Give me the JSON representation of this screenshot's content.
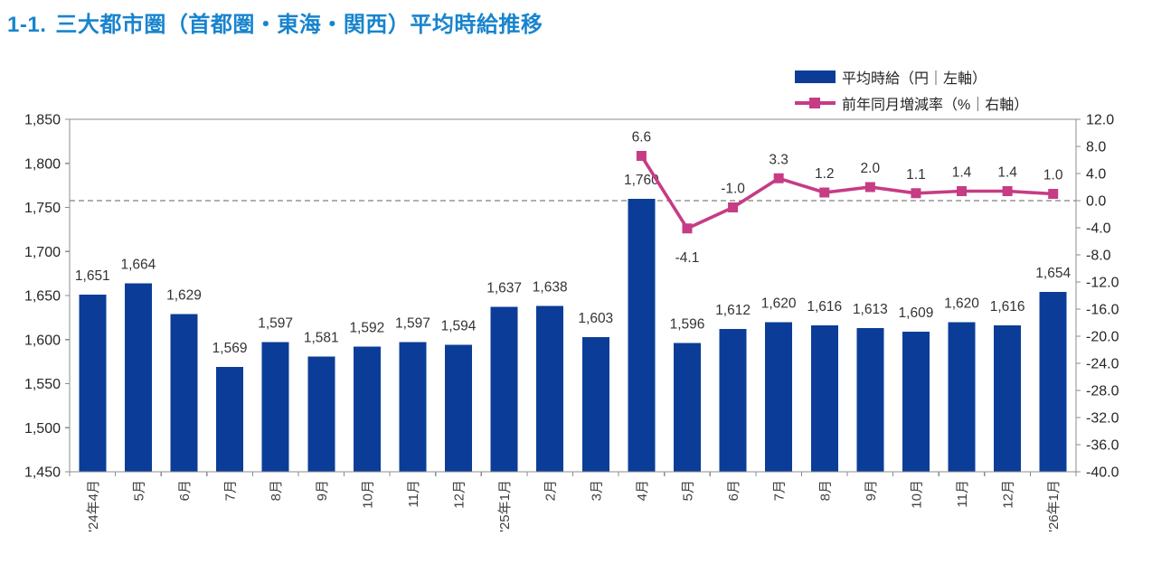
{
  "title": {
    "number": "1-1.",
    "text": "三大都市圏（首都圏・東海・関西）平均時給推移",
    "color": "#1884CE"
  },
  "legend": {
    "bar": {
      "label": "平均時給（円｜左軸）",
      "color": "#0B3D98"
    },
    "line": {
      "label": "前年同月増減率（%｜右軸）",
      "color": "#C63C85"
    }
  },
  "chart_data": {
    "type": "combo bar+line",
    "categories": [
      "'24年4月",
      "5月",
      "6月",
      "7月",
      "8月",
      "9月",
      "10月",
      "11月",
      "12月",
      "'25年1月",
      "2月",
      "3月",
      "4月",
      "5月",
      "6月",
      "7月",
      "8月",
      "9月",
      "10月",
      "11月",
      "12月",
      "'26年1月"
    ],
    "bars": {
      "name": "平均時給（円｜左軸）",
      "axis": "left",
      "unit": "円",
      "color": "#0B3D98",
      "values": [
        1651,
        1664,
        1629,
        1569,
        1597,
        1581,
        1592,
        1597,
        1594,
        1637,
        1638,
        1603,
        1760,
        1596,
        1612,
        1620,
        1616,
        1613,
        1609,
        1620,
        1616,
        1654
      ],
      "labels": [
        "1,651",
        "1,664",
        "1,629",
        "1,569",
        "1,597",
        "1,581",
        "1,592",
        "1,597",
        "1,594",
        "1,637",
        "1,638",
        "1,603",
        "1,760",
        "1,596",
        "1,612",
        "1,620",
        "1,616",
        "1,613",
        "1,609",
        "1,620",
        "1,616",
        "1,654"
      ]
    },
    "line": {
      "name": "前年同月増減率（%｜右軸）",
      "axis": "right",
      "unit": "%",
      "color": "#C63C85",
      "points": [
        {
          "category_index": 12,
          "value": 6.6,
          "label": "6.6",
          "label_pos": "above"
        },
        {
          "category_index": 13,
          "value": -4.1,
          "label": "-4.1",
          "label_pos": "below"
        },
        {
          "category_index": 14,
          "value": -1.0,
          "label": "-1.0",
          "label_pos": "above"
        },
        {
          "category_index": 15,
          "value": 3.3,
          "label": "3.3",
          "label_pos": "above"
        },
        {
          "category_index": 16,
          "value": 1.2,
          "label": "1.2",
          "label_pos": "above"
        },
        {
          "category_index": 17,
          "value": 2.0,
          "label": "2.0",
          "label_pos": "above"
        },
        {
          "category_index": 18,
          "value": 1.1,
          "label": "1.1",
          "label_pos": "above"
        },
        {
          "category_index": 19,
          "value": 1.4,
          "label": "1.4",
          "label_pos": "above"
        },
        {
          "category_index": 20,
          "value": 1.4,
          "label": "1.4",
          "label_pos": "above"
        },
        {
          "category_index": 21,
          "value": 1.0,
          "label": "1.0",
          "label_pos": "above"
        }
      ]
    },
    "left_axis": {
      "min": 1450,
      "max": 1850,
      "step": 50,
      "ticks": [
        "1,850",
        "1,800",
        "1,750",
        "1,700",
        "1,650",
        "1,600",
        "1,550",
        "1,500",
        "1,450"
      ]
    },
    "right_axis": {
      "min": -40.0,
      "max": 12.0,
      "step": 4,
      "ticks": [
        "12.0",
        "8.0",
        "4.0",
        "0.0",
        "-4.0",
        "-8.0",
        "-12.0",
        "-16.0",
        "-20.0",
        "-24.0",
        "-28.0",
        "-32.0",
        "-36.0",
        "-40.0"
      ]
    },
    "zero_line": {
      "value": 0.0,
      "axis": "right",
      "style": "dashed"
    },
    "grid": "off (only dashed zero line)",
    "legend_position": "top-right"
  }
}
